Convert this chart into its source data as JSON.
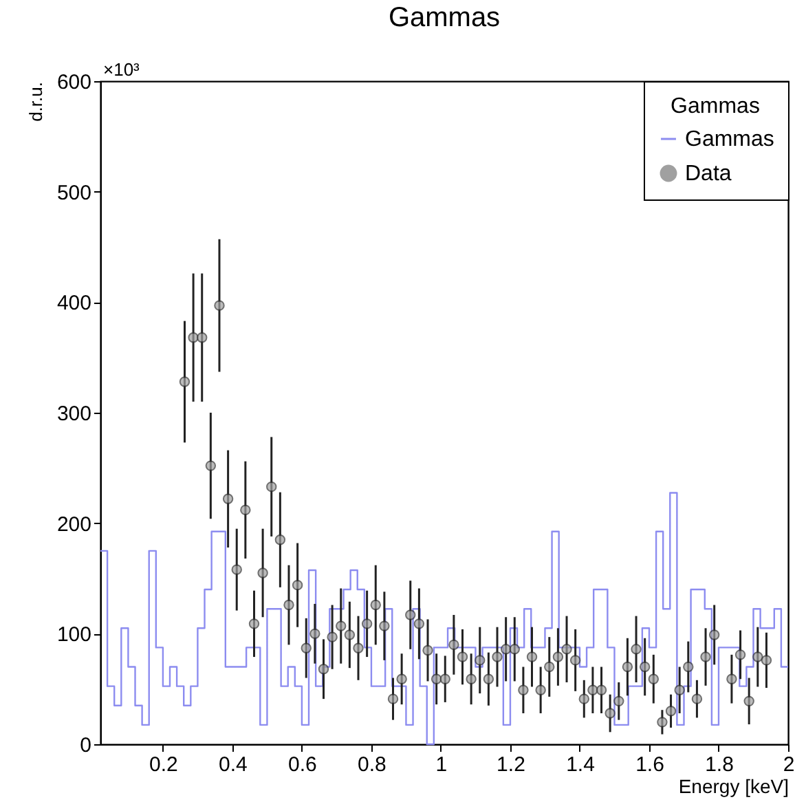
{
  "chart_data": {
    "type": "histogram",
    "title": "Gammas",
    "xlabel": "Energy [keV]",
    "ylabel": "d.r.u.",
    "legend_title": "Gammas",
    "annotations": [
      "×10³"
    ],
    "bins": [
      0.02,
      0.04,
      0.06,
      0.08,
      0.1,
      0.12,
      0.14,
      0.16,
      0.18,
      0.2,
      0.22,
      0.24,
      0.26,
      0.28,
      0.3,
      0.32,
      0.34,
      0.36,
      0.38,
      0.4,
      0.42,
      0.44,
      0.46,
      0.48,
      0.5,
      0.52,
      0.54,
      0.56,
      0.58,
      0.6,
      0.62,
      0.64,
      0.66,
      0.68,
      0.7,
      0.72,
      0.74,
      0.76,
      0.78,
      0.8,
      0.82,
      0.84,
      0.86,
      0.88,
      0.9,
      0.92,
      0.94,
      0.96,
      0.98,
      1,
      1.02,
      1.04,
      1.06,
      1.08,
      1.1,
      1.12,
      1.14,
      1.16,
      1.18,
      1.2,
      1.22,
      1.24,
      1.26,
      1.28,
      1.3,
      1.32,
      1.34,
      1.36,
      1.38,
      1.4,
      1.42,
      1.44,
      1.46,
      1.48,
      1.5,
      1.52,
      1.54,
      1.56,
      1.58,
      1.6,
      1.62,
      1.64,
      1.66,
      1.68,
      1.7,
      1.72,
      1.74,
      1.76,
      1.78,
      1.8,
      1.82,
      1.84,
      1.86,
      1.88,
      1.9,
      1.92,
      1.94,
      1.96,
      1.98,
      2
    ],
    "series": [
      {
        "name": "Gammas",
        "color": "#8c8cf0",
        "values": [
          175,
          52.5,
          35,
          105,
          70,
          35,
          17.5,
          175,
          87.5,
          52.5,
          70,
          52.5,
          35,
          52.5,
          105,
          140,
          192.5,
          192.5,
          70,
          70,
          70,
          87.5,
          87.5,
          17.5,
          122.5,
          122.5,
          52.5,
          70,
          52.5,
          17.5,
          157.5,
          52.5,
          70,
          122.5,
          122.5,
          140,
          157.5,
          140,
          87.5,
          52.5,
          52.5,
          122.5,
          52.5,
          52.5,
          17.5,
          122.5,
          52.5,
          0,
          87.5,
          87.5,
          105,
          87.5,
          87.5,
          87.5,
          70,
          87.5,
          87.5,
          87.5,
          17.5,
          105,
          87.5,
          122.5,
          87.5,
          87.5,
          105,
          192.5,
          87.5,
          87.5,
          87.5,
          70,
          87.5,
          140,
          140,
          87.5,
          17.5,
          17.5,
          52.5,
          52.5,
          105,
          87.5,
          192.5,
          122.5,
          227.5,
          17.5,
          52.5,
          140,
          140,
          122.5,
          17.5,
          87.5,
          87.5,
          87.5,
          52.5,
          70,
          122.5,
          105,
          105,
          122.5,
          70
        ]
      },
      {
        "name": "Data",
        "type": "scatter",
        "color": "#a0a0a0",
        "marker": "circle",
        "x": [
          0.2625,
          0.2875,
          0.3125,
          0.3375,
          0.3625,
          0.3875,
          0.4125,
          0.4375,
          0.4625,
          0.4875,
          0.5125,
          0.5375,
          0.5625,
          0.5875,
          0.6125,
          0.6375,
          0.6625,
          0.6875,
          0.7125,
          0.7375,
          0.7625,
          0.7875,
          0.8125,
          0.8375,
          0.8625,
          0.8875,
          0.9125,
          0.9375,
          0.9625,
          0.9875,
          1.0125,
          1.0375,
          1.0625,
          1.0875,
          1.1125,
          1.1375,
          1.1625,
          1.1875,
          1.2125,
          1.2375,
          1.2625,
          1.2875,
          1.3125,
          1.3375,
          1.3625,
          1.3875,
          1.4125,
          1.4375,
          1.4625,
          1.4875,
          1.5125,
          1.5375,
          1.5625,
          1.5875,
          1.6125,
          1.6375,
          1.6625,
          1.6875,
          1.7125,
          1.7375,
          1.7625,
          1.7875,
          1.8375,
          1.8625,
          1.8875,
          1.9125,
          1.9375
        ],
        "values": [
          328,
          368,
          368,
          252,
          397,
          222,
          158,
          212,
          109,
          155,
          233,
          185,
          126,
          144,
          87,
          100,
          68,
          97,
          107,
          99,
          87,
          109,
          126,
          107,
          41,
          59,
          117,
          109,
          85,
          59,
          59,
          90,
          79,
          59,
          76,
          59,
          79,
          86,
          86,
          49,
          79,
          49,
          70,
          79,
          86,
          76,
          41,
          49,
          49,
          28,
          39,
          70,
          86,
          70,
          59,
          20,
          30,
          49,
          70,
          41,
          79,
          99,
          59,
          81,
          39,
          79,
          76
        ],
        "errors": [
          55,
          58,
          58,
          48,
          60,
          44,
          37,
          44,
          30,
          40,
          45,
          43,
          36,
          38,
          27,
          27,
          27,
          29,
          34,
          30,
          29,
          30,
          36,
          31,
          19,
          23,
          31,
          32,
          28,
          23,
          21,
          27,
          25,
          23,
          30,
          24,
          27,
          29,
          29,
          21,
          27,
          21,
          27,
          26,
          30,
          28,
          17,
          21,
          21,
          17,
          17,
          26,
          30,
          26,
          22,
          11,
          15,
          21,
          23,
          17,
          26,
          27,
          22,
          22,
          21,
          27,
          25
        ]
      }
    ],
    "xlim": [
      0.02,
      2
    ],
    "xticks": [
      0.2,
      0.4,
      0.6,
      0.8,
      1,
      1.2,
      1.4,
      1.6,
      1.8,
      2
    ],
    "ylim": [
      0,
      600
    ],
    "yticks": [
      0,
      100,
      200,
      300,
      400,
      500,
      600
    ],
    "legend": "top right",
    "grid": false
  }
}
